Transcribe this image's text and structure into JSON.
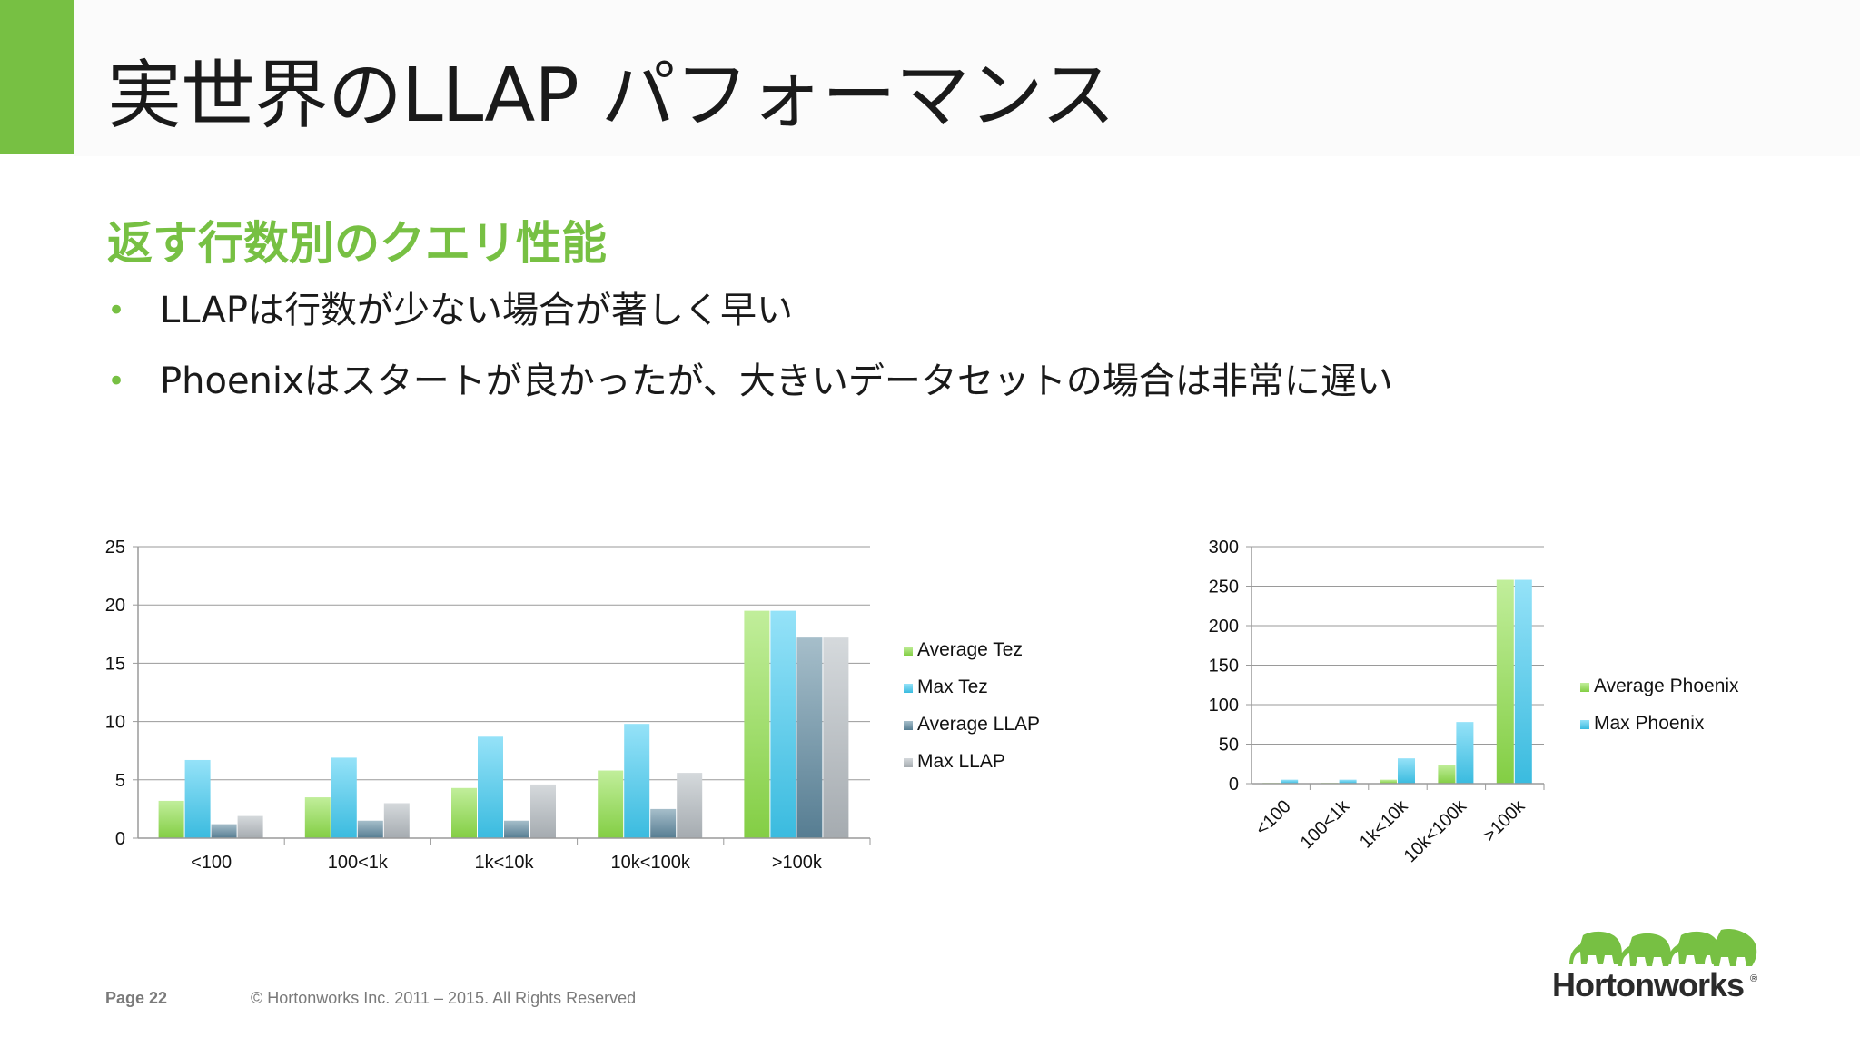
{
  "slide": {
    "title": "実世界のLLAP パフォーマンス",
    "subtitle": "返す行数別のクエリ性能",
    "bullets": [
      "LLAPは行数が少ない場合が著しく早い",
      "Phoenixはスタートが良かったが、大きいデータセットの場合は非常に遅い"
    ],
    "bullet_symbol": "•",
    "accent_color": "#77c043"
  },
  "footer": {
    "page": "Page 22",
    "copyright": "© Hortonworks Inc. 2011 – 2015. All Rights Reserved"
  },
  "logo": {
    "text": "Hortonworks",
    "reg": "®",
    "icon": "elephants-logo-icon"
  },
  "chart_data": [
    {
      "type": "bar",
      "categories": [
        "<100",
        "100<1k",
        "1k<10k",
        "10k<100k",
        ">100k"
      ],
      "series": [
        {
          "name": "Average Tez",
          "color": "#8ee04a",
          "values": [
            3.2,
            3.5,
            4.3,
            5.8,
            19.5
          ]
        },
        {
          "name": "Max Tez",
          "color": "#3fcbf2",
          "values": [
            6.7,
            6.9,
            8.7,
            9.8,
            19.5
          ]
        },
        {
          "name": "Average LLAP",
          "color": "#5e889f",
          "values": [
            1.2,
            1.5,
            1.5,
            2.5,
            17.2
          ]
        },
        {
          "name": "Max LLAP",
          "color": "#b3babf",
          "values": [
            1.9,
            3.0,
            4.6,
            5.6,
            17.2
          ]
        }
      ],
      "ylim": [
        0,
        25
      ],
      "yticks": [
        0,
        5,
        10,
        15,
        20,
        25
      ],
      "grid": true,
      "legend": "right"
    },
    {
      "type": "bar",
      "categories": [
        "<100",
        "100<1k",
        "1k<10k",
        "10k<100k",
        ">100k"
      ],
      "series": [
        {
          "name": "Average Phoenix",
          "color": "#8ee04a",
          "values": [
            1,
            1,
            5,
            24,
            258
          ]
        },
        {
          "name": "Max Phoenix",
          "color": "#3fcbf2",
          "values": [
            5,
            5,
            32,
            78,
            258
          ]
        }
      ],
      "ylim": [
        0,
        300
      ],
      "yticks": [
        0,
        50,
        100,
        150,
        200,
        250,
        300
      ],
      "grid": true,
      "legend": "right",
      "xtick_rotation": "rotated"
    }
  ]
}
